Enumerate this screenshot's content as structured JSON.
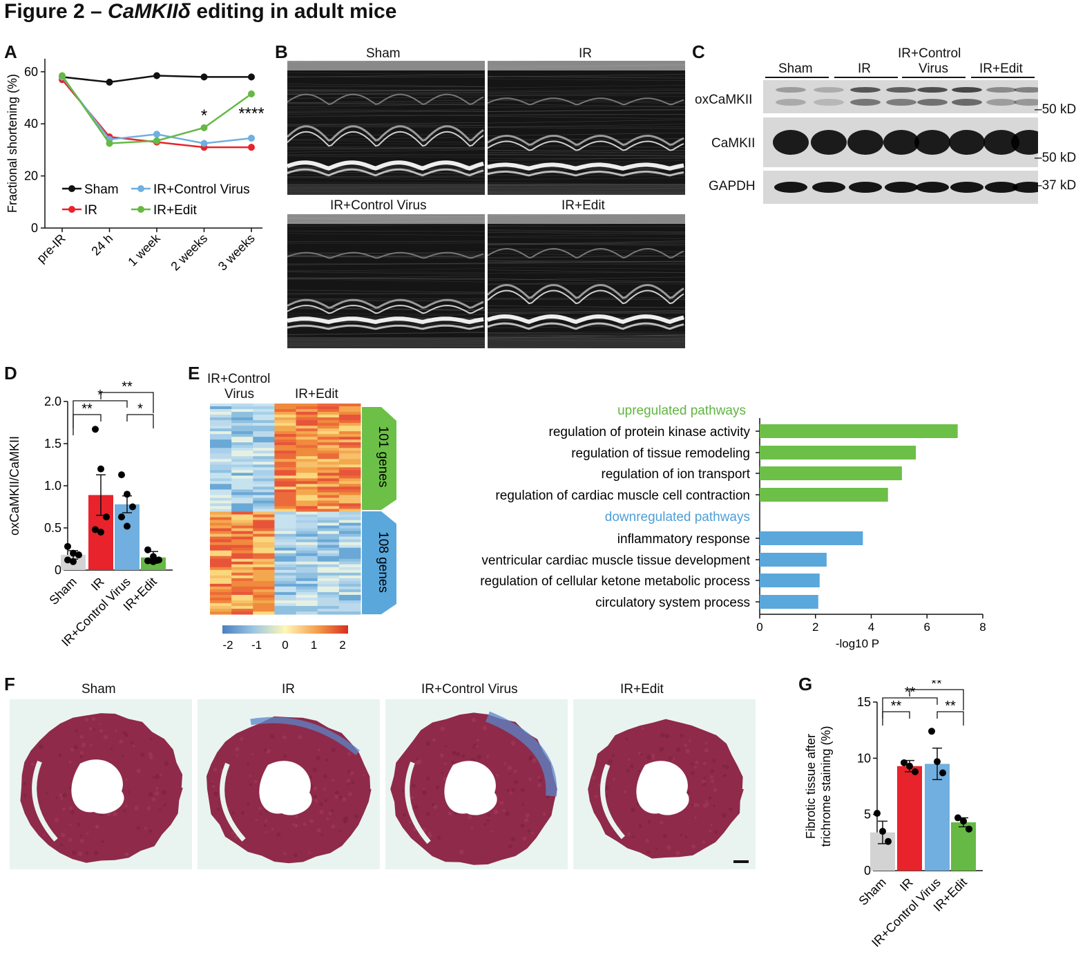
{
  "figure": {
    "title_prefix": "Figure 2 – ",
    "title_gene": "CaMKIIδ",
    "title_suffix": " editing in adult mice"
  },
  "panel_letters": [
    "A",
    "B",
    "C",
    "D",
    "E",
    "F",
    "G"
  ],
  "colors": {
    "sham": "#111111",
    "ir": "#e8232b",
    "control_virus": "#70afdf",
    "edit": "#65b944",
    "sham_bar": "#d3d3d3",
    "up_bar": "#6cbf47",
    "down_bar": "#5aa7dc",
    "up_text": "#5fb53f",
    "down_text": "#4d9fd6"
  },
  "panelA": {
    "chart_data": {
      "type": "line",
      "categories": [
        "pre-IR",
        "24 h",
        "1 week",
        "2 weeks",
        "3 weeks"
      ],
      "ylabel": "Fractional shortening (%)",
      "ylim": [
        0,
        65
      ],
      "yticks": [
        "0",
        "20",
        "40",
        "60"
      ],
      "series": [
        {
          "name": "Sham",
          "color": "#111111",
          "values": [
            58,
            56,
            58.5,
            58,
            58
          ]
        },
        {
          "name": "IR",
          "color": "#e8232b",
          "values": [
            57,
            35,
            33,
            31,
            31
          ]
        },
        {
          "name": "IR+Control Virus",
          "color": "#70afdf",
          "values": [
            58,
            34,
            36,
            32.5,
            34.5
          ]
        },
        {
          "name": "IR+Edit",
          "color": "#65b944",
          "values": [
            58.5,
            32.5,
            33.5,
            38.5,
            51.5
          ]
        }
      ],
      "annotations": [
        {
          "label": "*",
          "category": "2 weeks"
        },
        {
          "label": "****",
          "category": "3 weeks"
        }
      ],
      "legend": "bottom-inside"
    }
  },
  "panelB": {
    "labels": [
      "Sham",
      "IR",
      "IR+Control Virus",
      "IR+Edit"
    ]
  },
  "panelC": {
    "groups": [
      "Sham",
      "IR",
      "IR+Control\nVirus",
      "IR+Edit"
    ],
    "group1": "Sham",
    "group2": "IR",
    "group3a": "IR+Control",
    "group3b": "Virus",
    "group4": "IR+Edit",
    "rows": [
      "oxCaMKII",
      "CaMKII",
      "GAPDH"
    ],
    "markers": [
      "50 kD",
      "50 kD",
      "37 kD"
    ]
  },
  "panelD": {
    "chart_data": {
      "type": "bar",
      "categories": [
        "Sham",
        "IR",
        "IR+Control Virus",
        "IR+Edit"
      ],
      "values": [
        0.18,
        0.89,
        0.78,
        0.15
      ],
      "errors": [
        0.05,
        0.24,
        0.1,
        0.07
      ],
      "points": [
        [
          0.28,
          0.2,
          0.18,
          0.12,
          0.1
        ],
        [
          1.67,
          1.2,
          0.63,
          0.48,
          0.45
        ],
        [
          1.13,
          0.9,
          0.75,
          0.63,
          0.52
        ],
        [
          0.24,
          0.16,
          0.12,
          0.11,
          0.1
        ]
      ],
      "ylabel": "oxCaMKII/CaMKII",
      "ylim": [
        0,
        2.0
      ],
      "yticks": [
        "0",
        "0.5",
        "1.0",
        "1.5",
        "2.0"
      ],
      "significance": [
        {
          "pair": [
            "Sham",
            "IR"
          ],
          "label": "**"
        },
        {
          "pair": [
            "Sham",
            "IR+Control Virus"
          ],
          "label": "*"
        },
        {
          "pair": [
            "IR",
            "IR+Edit"
          ],
          "label": "**"
        },
        {
          "pair": [
            "IR+Control Virus",
            "IR+Edit"
          ],
          "label": "*"
        }
      ]
    }
  },
  "panelE": {
    "heatmap_groups": [
      "IR+Control\nVirus",
      "IR+Edit"
    ],
    "hg1a": "IR+Control",
    "hg1b": "Virus",
    "hg2": "IR+Edit",
    "gene_blocks": [
      "101 genes",
      "108 genes"
    ],
    "colorbar_ticks": [
      "-2",
      "-1",
      "0",
      "1",
      "2"
    ],
    "up_title": "upregulated pathways",
    "down_title": "downregulated pathways",
    "chart_data": {
      "type": "bar",
      "orientation": "horizontal",
      "xlabel": "-log10 P",
      "xlim": [
        0,
        8
      ],
      "xticks": [
        "0",
        "2",
        "4",
        "6",
        "8"
      ],
      "categories": [
        "regulation of protein kinase activity",
        "regulation of tissue remodeling",
        "regulation of ion transport",
        "regulation of cardiac muscle cell contraction",
        "inflammatory response",
        "ventricular cardiac muscle tissue development",
        "regulation of cellular ketone metabolic process",
        "circulatory system process"
      ],
      "values": [
        7.1,
        5.6,
        5.1,
        4.6,
        3.7,
        2.4,
        2.15,
        2.1
      ],
      "groups": [
        "up",
        "up",
        "up",
        "up",
        "down",
        "down",
        "down",
        "down"
      ]
    }
  },
  "panelF": {
    "labels": [
      "Sham",
      "IR",
      "IR+Control Virus",
      "IR+Edit"
    ]
  },
  "panelG": {
    "chart_data": {
      "type": "bar",
      "categories": [
        "Sham",
        "IR",
        "IR+Control Virus",
        "IR+Edit"
      ],
      "values": [
        3.4,
        9.3,
        9.5,
        4.3
      ],
      "errors": [
        1.0,
        0.5,
        1.4,
        0.4
      ],
      "points": [
        [
          5.1,
          3.5,
          2.6
        ],
        [
          9.6,
          9.3,
          8.8
        ],
        [
          12.4,
          9.7,
          8.7
        ],
        [
          4.7,
          4.4,
          3.7
        ]
      ],
      "ylabel": "Fibrotic tissue after trichrome staining (%)",
      "ylabel1": "Fibrotic tissue after",
      "ylabel2": "trichrome staining (%)",
      "ylim": [
        0,
        15
      ],
      "yticks": [
        "0",
        "5",
        "10",
        "15"
      ],
      "significance": [
        {
          "pair": [
            "Sham",
            "IR"
          ],
          "label": "**"
        },
        {
          "pair": [
            "Sham",
            "IR+Control Virus"
          ],
          "label": "**"
        },
        {
          "pair": [
            "IR",
            "IR+Edit"
          ],
          "label": "**"
        },
        {
          "pair": [
            "IR+Control Virus",
            "IR+Edit"
          ],
          "label": "**"
        }
      ]
    }
  }
}
